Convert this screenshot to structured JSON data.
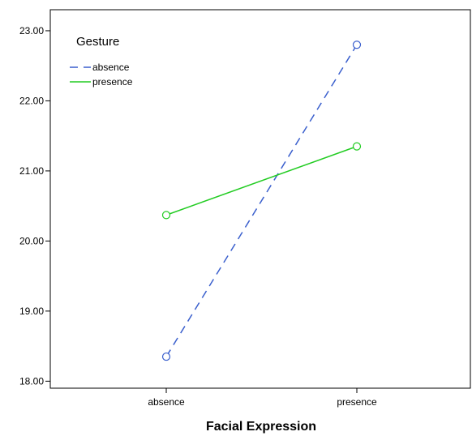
{
  "chart_data": {
    "type": "line",
    "title": "",
    "xlabel": "Facial Expression",
    "ylabel": "",
    "categories": [
      "absence",
      "presence"
    ],
    "ylim": [
      17.9,
      23.3
    ],
    "yticks": [
      18.0,
      19.0,
      20.0,
      21.0,
      22.0,
      23.0
    ],
    "ytick_labels": [
      "18.00",
      "19.00",
      "20.00",
      "21.00",
      "22.00",
      "23.00"
    ],
    "grid": false,
    "legend": {
      "title": "Gesture",
      "placement": "top-left"
    },
    "series": [
      {
        "name": "absence",
        "values": [
          18.35,
          22.8
        ],
        "color": "#3a5fcd",
        "line_style": "dashed",
        "marker": "circle"
      },
      {
        "name": "presence",
        "values": [
          20.37,
          21.35
        ],
        "color": "#22cc22",
        "line_style": "solid",
        "marker": "circle"
      }
    ]
  }
}
